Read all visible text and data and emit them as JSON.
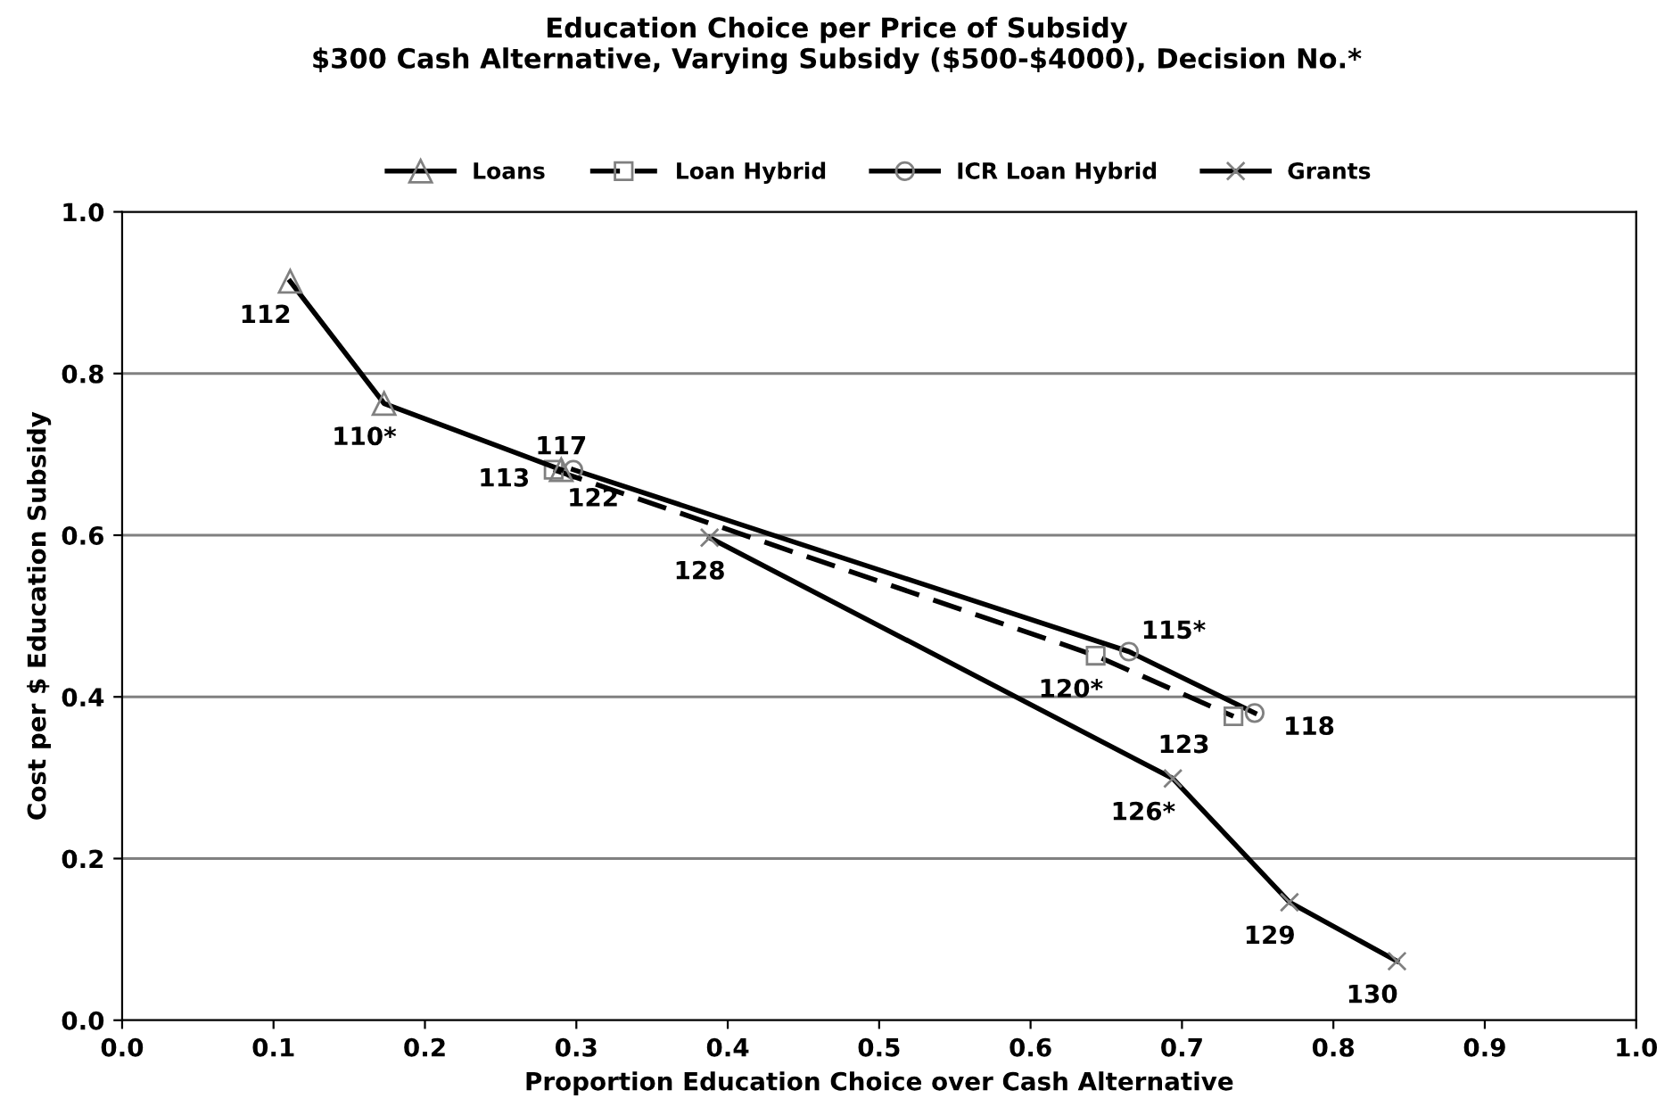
{
  "chart_data": {
    "type": "line",
    "title": "Education Choice per Price of Subsidy\n$300 Cash Alternative, Varying Subsidy ($500-$4000), Decision No.*",
    "xlabel": "Proportion Education Choice over Cash Alternative",
    "ylabel": "Cost per $ Education Subsidy",
    "series": [
      {
        "name": "Loans",
        "color": "#000000",
        "marker": "triangle",
        "line_style": "solid",
        "x": [
          0.111,
          0.173,
          0.29
        ],
        "values": [
          0.914,
          0.763,
          0.681
        ]
      },
      {
        "name": "Loan Hybrid",
        "color": "#000000",
        "marker": "square",
        "line_style": "dashed",
        "x": [
          0.285,
          0.643,
          0.734
        ],
        "values": [
          0.681,
          0.451,
          0.376
        ]
      },
      {
        "name": "ICR Loan Hybrid",
        "color": "#000000",
        "marker": "circle",
        "line_style": "solid",
        "x": [
          0.298,
          0.665,
          0.748
        ],
        "values": [
          0.681,
          0.456,
          0.38
        ]
      },
      {
        "name": "Grants",
        "color": "#000000",
        "marker": "cross",
        "line_style": "solid",
        "x": [
          0.388,
          0.694,
          0.771,
          0.842
        ],
        "values": [
          0.597,
          0.299,
          0.146,
          0.073
        ]
      }
    ],
    "annotations": [
      {
        "text": "112",
        "x": 0.111,
        "y": 0.914
      },
      {
        "text": "110*",
        "x": 0.173,
        "y": 0.763
      },
      {
        "text": "117",
        "x": 0.29,
        "y": 0.681
      },
      {
        "text": "113",
        "x": 0.285,
        "y": 0.681
      },
      {
        "text": "122",
        "x": 0.298,
        "y": 0.681
      },
      {
        "text": "128",
        "x": 0.388,
        "y": 0.597
      },
      {
        "text": "115*",
        "x": 0.665,
        "y": 0.456
      },
      {
        "text": "120*",
        "x": 0.643,
        "y": 0.451
      },
      {
        "text": "123",
        "x": 0.734,
        "y": 0.376
      },
      {
        "text": "118",
        "x": 0.748,
        "y": 0.38
      },
      {
        "text": "126*",
        "x": 0.694,
        "y": 0.299
      },
      {
        "text": "129",
        "x": 0.771,
        "y": 0.146
      },
      {
        "text": "130",
        "x": 0.842,
        "y": 0.073
      }
    ],
    "xlim": [
      0,
      1
    ],
    "xticks": [
      {
        "value": 0,
        "label": "0.0"
      },
      0.1,
      0.2,
      0.3,
      0.4,
      0.5,
      0.6,
      0.7,
      0.8,
      0.9,
      {
        "value": 1,
        "label": "1.0"
      }
    ],
    "ylim": [
      0,
      1
    ],
    "yticks": [
      {
        "value": 0,
        "label": "0.0"
      },
      0.2,
      0.4,
      0.6,
      0.8,
      {
        "value": 1,
        "label": "1.0"
      }
    ],
    "grid": "y",
    "legend": "top"
  }
}
